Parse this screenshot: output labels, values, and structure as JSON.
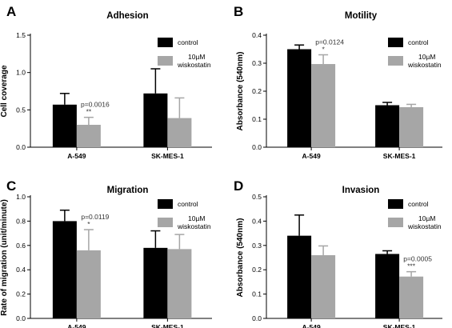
{
  "colors": {
    "control": "#000000",
    "treated": "#a6a6a6",
    "axis": "#000000"
  },
  "chart_data": [
    {
      "panel": "A",
      "type": "bar",
      "title": "Adhesion",
      "ylabel": "Cell coverage",
      "xlabel": "",
      "categories": [
        "A-549",
        "SK-MES-1"
      ],
      "ylim": [
        0,
        1.5
      ],
      "yticks": [
        0,
        0.5,
        1.0,
        1.5
      ],
      "yticklabels": [
        "0.0",
        "0.5",
        "1.0",
        "1.5"
      ],
      "legend": "top-right",
      "series": [
        {
          "name": "control",
          "values": [
            0.57,
            0.72
          ],
          "errors": [
            0.15,
            0.33
          ]
        },
        {
          "name": "10µM\nwiskostatin",
          "values": [
            0.3,
            0.39
          ],
          "errors": [
            0.1,
            0.27
          ]
        }
      ],
      "annotations": [
        {
          "category": "A-549",
          "p": "p=0.0016",
          "stars": "**"
        }
      ]
    },
    {
      "panel": "B",
      "type": "bar",
      "title": "Motility",
      "ylabel": "Absorbance (540nm)",
      "xlabel": "",
      "categories": [
        "A-549",
        "SK-MES-1"
      ],
      "ylim": [
        0,
        0.4
      ],
      "yticks": [
        0,
        0.1,
        0.2,
        0.3,
        0.4
      ],
      "yticklabels": [
        "0.0",
        "0.1",
        "0.2",
        "0.3",
        "0.4"
      ],
      "legend": "top-right",
      "series": [
        {
          "name": "control",
          "values": [
            0.35,
            0.15
          ],
          "errors": [
            0.015,
            0.01
          ]
        },
        {
          "name": "10µM\nwiskostatin",
          "values": [
            0.297,
            0.143
          ],
          "errors": [
            0.033,
            0.01
          ]
        }
      ],
      "annotations": [
        {
          "category": "A-549",
          "p": "p=0.0124",
          "stars": "*"
        }
      ]
    },
    {
      "panel": "C",
      "type": "bar",
      "title": "Migration",
      "ylabel": "Rate of migration (unit/minute)",
      "xlabel": "",
      "categories": [
        "A-549",
        "SK-MES-1"
      ],
      "ylim": [
        0,
        1.0
      ],
      "yticks": [
        0,
        0.2,
        0.4,
        0.6,
        0.8,
        1.0
      ],
      "yticklabels": [
        "0.0",
        "0.2",
        "0.4",
        "0.6",
        "0.8",
        "1.0"
      ],
      "legend": "top-right",
      "series": [
        {
          "name": "control",
          "values": [
            0.8,
            0.58
          ],
          "errors": [
            0.09,
            0.14
          ]
        },
        {
          "name": "10µM\nwiskostatin",
          "values": [
            0.56,
            0.57
          ],
          "errors": [
            0.17,
            0.12
          ]
        }
      ],
      "annotations": [
        {
          "category": "A-549",
          "p": "p=0.0119",
          "stars": "*"
        }
      ]
    },
    {
      "panel": "D",
      "type": "bar",
      "title": "Invasion",
      "ylabel": "Absorbance (540nm)",
      "xlabel": "",
      "categories": [
        "A-549",
        "SK-MES-1"
      ],
      "ylim": [
        0,
        0.5
      ],
      "yticks": [
        0,
        0.1,
        0.2,
        0.3,
        0.4,
        0.5
      ],
      "yticklabels": [
        "0.0",
        "0.1",
        "0.2",
        "0.3",
        "0.4",
        "0.5"
      ],
      "legend": "top-right",
      "series": [
        {
          "name": "control",
          "values": [
            0.34,
            0.265
          ],
          "errors": [
            0.085,
            0.013
          ]
        },
        {
          "name": "10µM\nwiskostatin",
          "values": [
            0.26,
            0.172
          ],
          "errors": [
            0.038,
            0.02
          ]
        }
      ],
      "annotations": [
        {
          "category": "SK-MES-1",
          "p": "p=0.0005",
          "stars": "***"
        }
      ]
    }
  ]
}
